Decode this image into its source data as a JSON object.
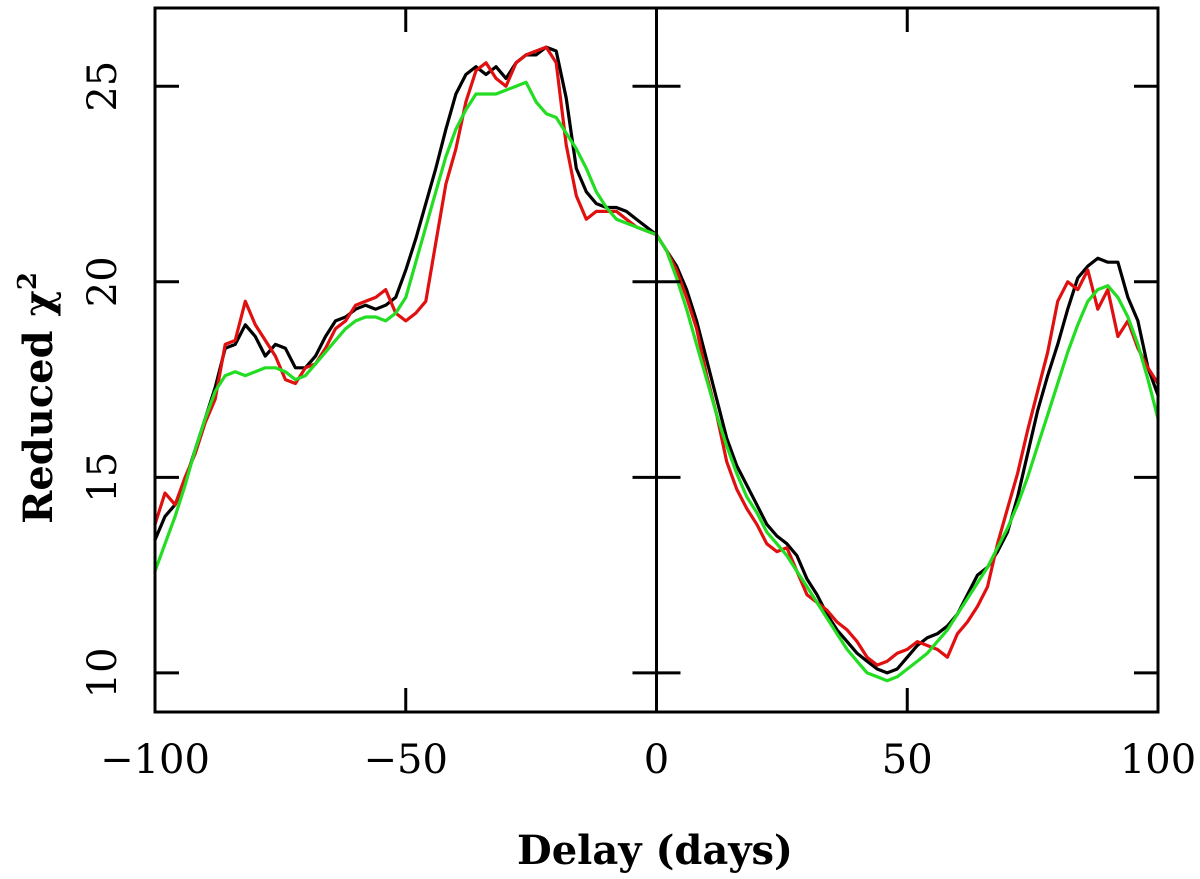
{
  "chart_data": {
    "type": "line",
    "title": "",
    "xlabel": "Delay (days)",
    "ylabel": "Reduced χ",
    "ylabel_superscript": "2",
    "xlim": [
      -100,
      100
    ],
    "ylim": [
      9.0,
      27.0
    ],
    "xticks": [
      {
        "value": -100,
        "label": "−100"
      },
      {
        "value": -50,
        "label": "−50"
      },
      {
        "value": 0,
        "label": "0"
      },
      {
        "value": 50,
        "label": "50"
      },
      {
        "value": 100,
        "label": "100"
      }
    ],
    "yticks": [
      {
        "value": 10,
        "label": "10"
      },
      {
        "value": 15,
        "label": "15"
      },
      {
        "value": 20,
        "label": "20"
      },
      {
        "value": 25,
        "label": "25"
      }
    ],
    "vertical_line_x": 0,
    "grid": false,
    "series": [
      {
        "color": "#000000",
        "x": [
          -100,
          -98,
          -96,
          -94,
          -92,
          -90,
          -88,
          -86,
          -84,
          -82,
          -80,
          -78,
          -76,
          -74,
          -72,
          -70,
          -68,
          -66,
          -64,
          -62,
          -60,
          -58,
          -56,
          -54,
          -52,
          -50,
          -48,
          -46,
          -44,
          -42,
          -40,
          -38,
          -36,
          -34,
          -32,
          -30,
          -28,
          -26,
          -24,
          -22,
          -20,
          -18,
          -16,
          -14,
          -12,
          -10,
          -8,
          -6,
          -4,
          -2,
          0,
          2,
          4,
          6,
          8,
          10,
          12,
          14,
          16,
          18,
          20,
          22,
          24,
          26,
          28,
          30,
          32,
          34,
          36,
          38,
          40,
          42,
          44,
          46,
          48,
          50,
          52,
          54,
          56,
          58,
          60,
          62,
          64,
          66,
          68,
          70,
          72,
          74,
          76,
          78,
          80,
          82,
          84,
          86,
          88,
          90,
          92,
          94,
          96,
          98,
          100
        ],
        "y": [
          13.4,
          14.0,
          14.3,
          14.9,
          15.7,
          16.5,
          17.3,
          18.3,
          18.4,
          18.9,
          18.6,
          18.1,
          18.4,
          18.3,
          17.8,
          17.8,
          18.1,
          18.6,
          19.0,
          19.1,
          19.3,
          19.4,
          19.3,
          19.4,
          19.6,
          20.3,
          21.1,
          22.0,
          22.9,
          23.9,
          24.8,
          25.3,
          25.5,
          25.3,
          25.5,
          25.2,
          25.6,
          25.8,
          25.8,
          26.0,
          25.9,
          24.7,
          22.9,
          22.3,
          22.0,
          21.9,
          21.9,
          21.8,
          21.6,
          21.4,
          21.2,
          20.8,
          20.4,
          19.8,
          19.0,
          18.0,
          17.0,
          16.0,
          15.3,
          14.8,
          14.3,
          13.8,
          13.5,
          13.3,
          13.0,
          12.4,
          12.0,
          11.5,
          11.1,
          10.8,
          10.5,
          10.3,
          10.1,
          10.0,
          10.1,
          10.4,
          10.7,
          10.9,
          11.0,
          11.2,
          11.5,
          12.0,
          12.5,
          12.7,
          13.1,
          13.6,
          14.5,
          15.6,
          16.7,
          17.6,
          18.4,
          19.3,
          20.1,
          20.4,
          20.6,
          20.5,
          20.5,
          19.6,
          19.0,
          17.8,
          17.1
        ]
      },
      {
        "color": "#e01010",
        "x": [
          -100,
          -98,
          -96,
          -94,
          -92,
          -90,
          -88,
          -86,
          -84,
          -82,
          -80,
          -78,
          -76,
          -74,
          -72,
          -70,
          -68,
          -66,
          -64,
          -62,
          -60,
          -58,
          -56,
          -54,
          -52,
          -50,
          -48,
          -46,
          -44,
          -42,
          -40,
          -38,
          -36,
          -34,
          -32,
          -30,
          -28,
          -26,
          -24,
          -22,
          -20,
          -18,
          -16,
          -14,
          -12,
          -10,
          -8,
          -6,
          -4,
          -2,
          0,
          2,
          4,
          6,
          8,
          10,
          12,
          14,
          16,
          18,
          20,
          22,
          24,
          26,
          28,
          30,
          32,
          34,
          36,
          38,
          40,
          42,
          44,
          46,
          48,
          50,
          52,
          54,
          56,
          58,
          60,
          62,
          64,
          66,
          68,
          70,
          72,
          74,
          76,
          78,
          80,
          82,
          84,
          86,
          88,
          90,
          92,
          94,
          96,
          98,
          100
        ],
        "y": [
          13.8,
          14.6,
          14.3,
          15.0,
          15.6,
          16.4,
          17.0,
          18.4,
          18.5,
          19.5,
          18.9,
          18.5,
          18.1,
          17.5,
          17.4,
          17.8,
          17.9,
          18.3,
          18.8,
          19.0,
          19.4,
          19.5,
          19.6,
          19.8,
          19.2,
          19.0,
          19.2,
          19.5,
          21.0,
          22.5,
          23.4,
          24.6,
          25.4,
          25.6,
          25.2,
          25.0,
          25.6,
          25.8,
          25.9,
          26.0,
          25.6,
          23.5,
          22.2,
          21.6,
          21.8,
          21.8,
          21.8,
          21.6,
          21.4,
          21.3,
          21.2,
          20.8,
          20.3,
          19.6,
          18.8,
          17.6,
          16.6,
          15.4,
          14.7,
          14.2,
          13.8,
          13.3,
          13.1,
          13.2,
          12.6,
          12.0,
          11.8,
          11.6,
          11.3,
          11.1,
          10.8,
          10.4,
          10.2,
          10.3,
          10.5,
          10.6,
          10.8,
          10.7,
          10.6,
          10.4,
          11.0,
          11.3,
          11.7,
          12.2,
          13.3,
          14.2,
          15.1,
          16.2,
          17.2,
          18.2,
          19.5,
          20.0,
          19.8,
          20.3,
          19.3,
          19.8,
          18.6,
          19.0,
          18.3,
          17.8,
          17.4
        ]
      },
      {
        "color": "#22dd22",
        "x": [
          -100,
          -98,
          -96,
          -94,
          -92,
          -90,
          -88,
          -86,
          -84,
          -82,
          -80,
          -78,
          -76,
          -74,
          -72,
          -70,
          -68,
          -66,
          -64,
          -62,
          -60,
          -58,
          -56,
          -54,
          -52,
          -50,
          -48,
          -46,
          -44,
          -42,
          -40,
          -38,
          -36,
          -34,
          -32,
          -30,
          -28,
          -26,
          -24,
          -22,
          -20,
          -18,
          -16,
          -14,
          -12,
          -10,
          -8,
          -6,
          -4,
          -2,
          0,
          2,
          4,
          6,
          8,
          10,
          12,
          14,
          16,
          18,
          20,
          22,
          24,
          26,
          28,
          30,
          32,
          34,
          36,
          38,
          40,
          42,
          44,
          46,
          48,
          50,
          52,
          54,
          56,
          58,
          60,
          62,
          64,
          66,
          68,
          70,
          72,
          74,
          76,
          78,
          80,
          82,
          84,
          86,
          88,
          90,
          92,
          94,
          96,
          98,
          100
        ],
        "y": [
          12.6,
          13.3,
          14.0,
          14.8,
          15.7,
          16.5,
          17.2,
          17.6,
          17.7,
          17.6,
          17.7,
          17.8,
          17.8,
          17.7,
          17.5,
          17.6,
          17.9,
          18.2,
          18.5,
          18.8,
          19.0,
          19.1,
          19.1,
          19.0,
          19.2,
          19.6,
          20.5,
          21.4,
          22.3,
          23.2,
          23.9,
          24.4,
          24.8,
          24.8,
          24.8,
          24.9,
          25.0,
          25.1,
          24.6,
          24.3,
          24.2,
          23.8,
          23.4,
          22.9,
          22.3,
          21.9,
          21.6,
          21.5,
          21.4,
          21.3,
          21.2,
          20.8,
          20.1,
          19.3,
          18.4,
          17.5,
          16.6,
          15.8,
          15.1,
          14.5,
          14.1,
          13.6,
          13.3,
          13.0,
          12.6,
          12.2,
          11.8,
          11.4,
          11.0,
          10.6,
          10.3,
          10.0,
          9.9,
          9.8,
          9.9,
          10.1,
          10.3,
          10.5,
          10.8,
          11.1,
          11.5,
          11.9,
          12.3,
          12.7,
          13.2,
          13.7,
          14.3,
          15.0,
          15.8,
          16.6,
          17.4,
          18.2,
          18.9,
          19.5,
          19.8,
          19.9,
          19.6,
          19.1,
          18.4,
          17.5,
          16.5
        ]
      }
    ]
  }
}
